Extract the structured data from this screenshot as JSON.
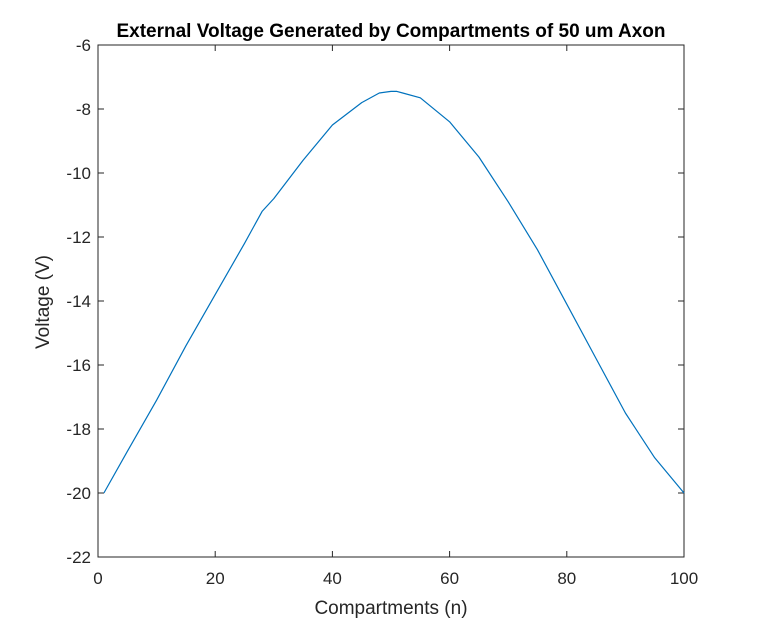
{
  "chart_data": {
    "type": "line",
    "title": "External Voltage Generated by Compartments of 50 um Axon",
    "xlabel": "Compartments (n)",
    "ylabel": "Voltage (V)",
    "xlim": [
      0,
      100
    ],
    "ylim": [
      -22,
      -6
    ],
    "xticks": [
      0,
      20,
      40,
      60,
      80,
      100
    ],
    "yticks": [
      -22,
      -20,
      -18,
      -16,
      -14,
      -12,
      -10,
      -8,
      -6
    ],
    "grid": false,
    "legend": "none",
    "line_color": "#0072BD",
    "axis_color": "#262626",
    "series": [
      {
        "x": [
          1,
          5,
          10,
          15,
          20,
          25,
          28,
          30,
          35,
          40,
          45,
          48,
          50,
          51,
          52,
          55,
          60,
          65,
          70,
          75,
          80,
          85,
          90,
          95,
          100
        ],
        "values": [
          -20.0,
          -18.7,
          -17.1,
          -15.4,
          -13.8,
          -12.2,
          -11.2,
          -10.8,
          -9.6,
          -8.5,
          -7.8,
          -7.5,
          -7.45,
          -7.45,
          -7.5,
          -7.65,
          -8.4,
          -9.5,
          -10.9,
          -12.4,
          -14.1,
          -15.8,
          -17.5,
          -18.9,
          -20.0
        ]
      }
    ]
  }
}
